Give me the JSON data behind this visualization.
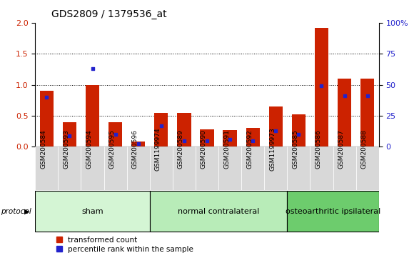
{
  "title": "GDS2809 / 1379536_at",
  "samples": [
    "GSM200584",
    "GSM200593",
    "GSM200594",
    "GSM200595",
    "GSM200596",
    "GSM1199974",
    "GSM200589",
    "GSM200590",
    "GSM200591",
    "GSM200592",
    "GSM1199973",
    "GSM200585",
    "GSM200586",
    "GSM200587",
    "GSM200588"
  ],
  "red_values": [
    0.9,
    0.4,
    1.0,
    0.4,
    0.08,
    0.55,
    0.55,
    0.28,
    0.27,
    0.3,
    0.65,
    0.52,
    1.92,
    1.1,
    1.1
  ],
  "blue_percentile": [
    40,
    9,
    63,
    10,
    2.5,
    17,
    5,
    5,
    6,
    5,
    13,
    10,
    49,
    41,
    41
  ],
  "groups": [
    {
      "name": "sham",
      "start": 0,
      "end": 5,
      "color": "#d4f5d4"
    },
    {
      "name": "normal contralateral",
      "start": 5,
      "end": 11,
      "color": "#b8ecb8"
    },
    {
      "name": "osteoarthritic ipsilateral",
      "start": 11,
      "end": 15,
      "color": "#6dcc6d"
    }
  ],
  "red_color": "#cc2200",
  "blue_color": "#2222cc",
  "ylim_left": [
    0,
    2.0
  ],
  "ylim_right": [
    0,
    100
  ],
  "yticks_left": [
    0,
    0.5,
    1.0,
    1.5,
    2.0
  ],
  "yticks_right": [
    0,
    25,
    50,
    75,
    100
  ],
  "bar_width": 0.6,
  "tick_label_fontsize": 6.5,
  "title_fontsize": 10,
  "legend_fontsize": 7.5,
  "group_label_fontsize": 8,
  "protocol_label": "protocol",
  "background_color": "#ffffff",
  "sample_box_color": "#d8d8d8"
}
